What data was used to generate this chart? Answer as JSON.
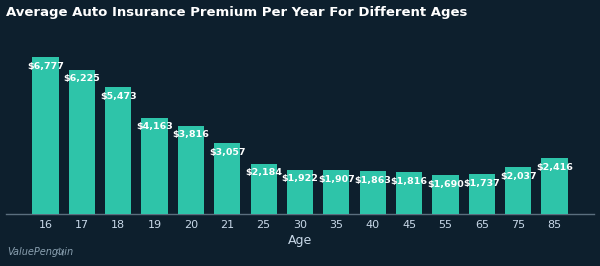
{
  "title": "Average Auto Insurance Premium Per Year For Different Ages",
  "xlabel": "Age",
  "categories": [
    "16",
    "17",
    "18",
    "19",
    "20",
    "21",
    "25",
    "30",
    "35",
    "40",
    "45",
    "55",
    "65",
    "75",
    "85"
  ],
  "values": [
    6777,
    6225,
    5473,
    4163,
    3816,
    3057,
    2184,
    1922,
    1907,
    1863,
    1816,
    1690,
    1737,
    2037,
    2416
  ],
  "labels": [
    "$6,777",
    "$6,225",
    "$5,473",
    "$4,163",
    "$3,816",
    "$3,057",
    "$2,184",
    "$1,922",
    "$1,907",
    "$1,863",
    "$1,816",
    "$1,690",
    "$1,737",
    "$2,037",
    "$2,416"
  ],
  "bar_color": "#2ec4a9",
  "background_color": "#0d1f2d",
  "text_color": "#c8d8e8",
  "title_color": "#ffffff",
  "label_color": "#ffffff",
  "axis_color": "#5a6e7e",
  "watermark": "ValuePenguin",
  "title_fontsize": 9.5,
  "label_fontsize": 6.8,
  "tick_fontsize": 8,
  "xlabel_fontsize": 9
}
